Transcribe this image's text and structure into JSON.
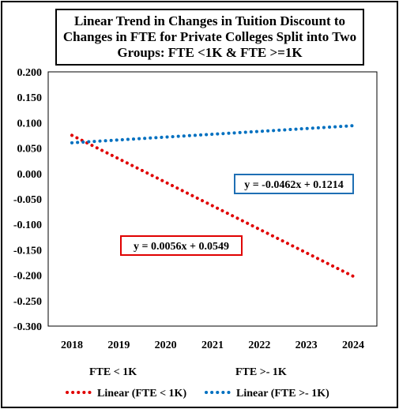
{
  "chart_data": {
    "type": "line",
    "title": "Linear Trend in Changes in Tuition Discount to Changes in FTE for Private Colleges Split into Two Groups: FTE <1K & FTE >=1K",
    "x": [
      2018,
      2019,
      2020,
      2021,
      2022,
      2023,
      2024
    ],
    "xlim": [
      2018,
      2024
    ],
    "ylim": [
      -0.3,
      0.2
    ],
    "yticks": [
      "0.200",
      "0.150",
      "0.100",
      "0.050",
      "0.000",
      "-0.050",
      "-0.100",
      "-0.150",
      "-0.200",
      "-0.250",
      "-0.300"
    ],
    "grid": false,
    "series": [
      {
        "name": "Linear (FTE < 1K)",
        "label": "FTE < 1K",
        "color": "#e00000",
        "values": [
          0.0752,
          0.029,
          -0.0172,
          -0.0634,
          -0.1096,
          -0.1558,
          -0.202
        ]
      },
      {
        "name": "Linear (FTE >- 1K)",
        "label": "FTE >- 1K",
        "color": "#0070c0",
        "values": [
          0.0605,
          0.0661,
          0.0717,
          0.0773,
          0.0829,
          0.0885,
          0.0941
        ]
      }
    ],
    "annotations": [
      {
        "text": "y = -0.0462x + 0.1214",
        "border_color": "#1f6fb4"
      },
      {
        "text": "y = 0.0056x + 0.0549",
        "border_color": "#e00000"
      }
    ],
    "legend_placement": "bottom"
  }
}
